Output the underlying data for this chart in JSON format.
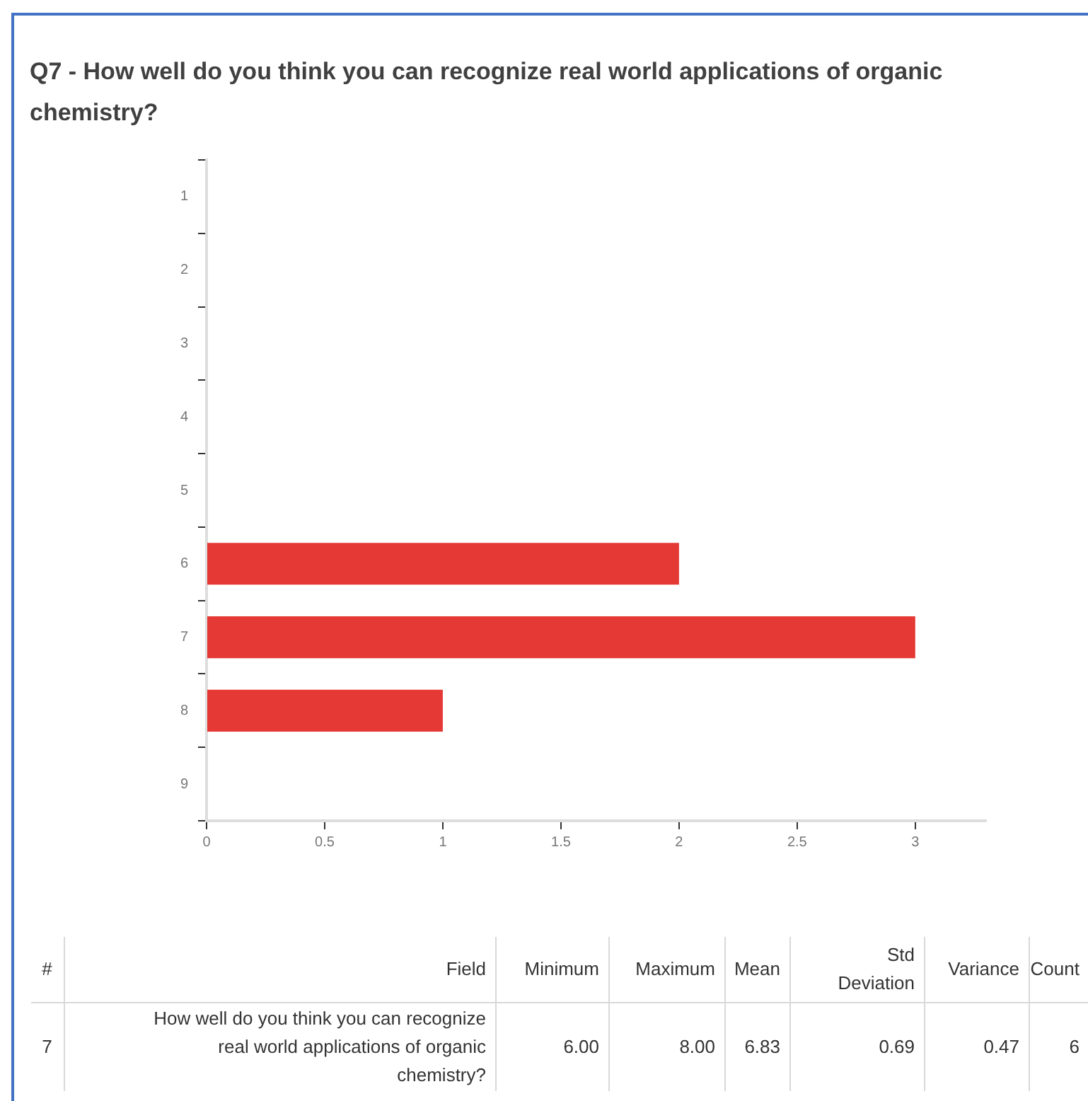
{
  "chart_data": {
    "type": "bar",
    "orientation": "horizontal",
    "title": "Q7 - How well do you think you can recognize real world applications of organic chemistry?",
    "categories": [
      "1",
      "2",
      "3",
      "4",
      "5",
      "6",
      "7",
      "8",
      "9"
    ],
    "values": [
      0,
      0,
      0,
      0,
      0,
      2,
      3,
      1,
      0
    ],
    "color": "#e53935",
    "xlim": [
      0,
      3.3
    ],
    "xticks": [
      0,
      0.5,
      1,
      1.5,
      2,
      2.5,
      3
    ],
    "annotations": [
      "#",
      "Field",
      "Minimum",
      "Maximum",
      "Mean",
      "Std Deviation",
      "Variance",
      "Count",
      "7",
      "How well do you think you can recognize real world applications of organic chemistry?",
      "6.00",
      "8.00",
      "6.83",
      "0.69",
      "0.47",
      "6"
    ]
  }
}
